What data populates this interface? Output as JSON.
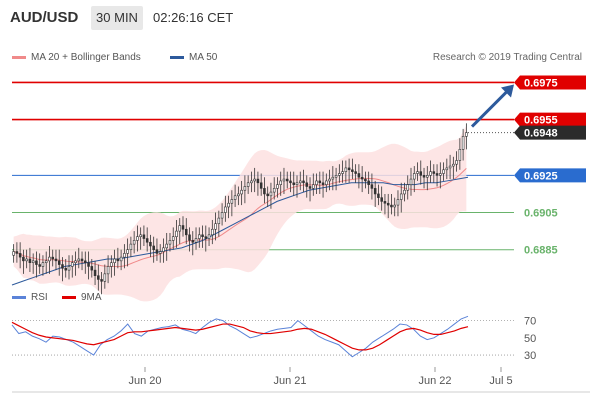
{
  "header": {
    "pair": "AUD/USD",
    "timeframe": "30 MIN",
    "time": "02:26:16 CET"
  },
  "legend": {
    "ma20_label": "MA 20 + Bollinger Bands",
    "ma50_label": "MA 50",
    "credit": "Research © 2019 Trading Central"
  },
  "rsi_legend": {
    "rsi_label": "RSI",
    "ma_label": "9MA"
  },
  "colors": {
    "resistance": "#e00000",
    "support": "#69b36b",
    "ma20": "#f08a8a",
    "ma50": "#2d5a9c",
    "bollinger_fill": "#fde0e0",
    "pivot": "#2a6ccf",
    "last_price": "#2b2b2b",
    "arrow": "#2d5a9c",
    "rsi": "#5b83d8",
    "rsi_ma": "#e00000"
  },
  "chart_data": [
    {
      "type": "candlestick",
      "title": "AUD/USD",
      "timeframe": "30 MIN",
      "x_tick_labels": [
        "Jun 20",
        "Jun 21",
        "Jun 22",
        "Jul 5"
      ],
      "ylim": [
        0.6866,
        0.6986
      ],
      "price_levels": [
        {
          "label": "0.6975",
          "value": 0.6975,
          "kind": "resistance"
        },
        {
          "label": "0.6955",
          "value": 0.6955,
          "kind": "resistance"
        },
        {
          "label": "0.6948",
          "value": 0.6948,
          "kind": "last"
        },
        {
          "label": "0.6925",
          "value": 0.6925,
          "kind": "pivot"
        },
        {
          "label": "0.6905",
          "value": 0.6905,
          "kind": "support"
        },
        {
          "label": "0.6885",
          "value": 0.6885,
          "kind": "support"
        }
      ],
      "close_series": [
        0.6884,
        0.6883,
        0.6881,
        0.6879,
        0.688,
        0.6878,
        0.6879,
        0.6877,
        0.6876,
        0.6878,
        0.6879,
        0.6881,
        0.688,
        0.6879,
        0.6877,
        0.6875,
        0.6874,
        0.6876,
        0.6878,
        0.6879,
        0.688,
        0.6879,
        0.6878,
        0.6876,
        0.6874,
        0.6871,
        0.6869,
        0.6868,
        0.6872,
        0.6876,
        0.6878,
        0.688,
        0.6879,
        0.6881,
        0.6883,
        0.6885,
        0.6888,
        0.689,
        0.6892,
        0.6893,
        0.6891,
        0.6889,
        0.6887,
        0.6885,
        0.6883,
        0.6884,
        0.6886,
        0.6888,
        0.689,
        0.6892,
        0.6895,
        0.6898,
        0.6896,
        0.6893,
        0.689,
        0.6889,
        0.6891,
        0.6893,
        0.6892,
        0.6891,
        0.6893,
        0.6896,
        0.6899,
        0.6902,
        0.6905,
        0.6908,
        0.691,
        0.6912,
        0.6914,
        0.6915,
        0.6917,
        0.6919,
        0.6921,
        0.6922,
        0.6923,
        0.6921,
        0.6918,
        0.6915,
        0.6914,
        0.6916,
        0.6918,
        0.692,
        0.6922,
        0.6923,
        0.6922,
        0.6921,
        0.692,
        0.6921,
        0.6922,
        0.6921,
        0.6919,
        0.6918,
        0.692,
        0.6922,
        0.6921,
        0.692,
        0.6922,
        0.6923,
        0.6924,
        0.6925,
        0.6926,
        0.6927,
        0.6929,
        0.6928,
        0.6927,
        0.6926,
        0.6924,
        0.6923,
        0.6922,
        0.692,
        0.6918,
        0.6915,
        0.6913,
        0.6911,
        0.691,
        0.6909,
        0.6908,
        0.6909,
        0.6912,
        0.6915,
        0.6917,
        0.692,
        0.6923,
        0.6926,
        0.6927,
        0.6925,
        0.6924,
        0.6925,
        0.6927,
        0.6926,
        0.6925,
        0.6926,
        0.6928,
        0.6929,
        0.693,
        0.6931,
        0.6933,
        0.6939,
        0.6946,
        0.6948
      ],
      "ma50_series": [
        0.6866,
        0.6868,
        0.687,
        0.6872,
        0.6874,
        0.6876,
        0.6877,
        0.6878,
        0.6879,
        0.688,
        0.688,
        0.6881,
        0.6882,
        0.6883,
        0.6884,
        0.6885,
        0.6886,
        0.6888,
        0.689,
        0.6893,
        0.6896,
        0.6899,
        0.6902,
        0.6905,
        0.6908,
        0.6911,
        0.6913,
        0.6915,
        0.6917,
        0.6918,
        0.6919,
        0.692,
        0.6921,
        0.6921,
        0.6921,
        0.6921,
        0.692,
        0.692,
        0.692,
        0.6921,
        0.6921,
        0.6922,
        0.6923,
        0.6924
      ],
      "x_range_candles": 140,
      "future_range_until": "Jul 5"
    },
    {
      "type": "line",
      "title": "",
      "series": [
        {
          "name": "RSI",
          "values": [
            65,
            55,
            57,
            52,
            49,
            45,
            52,
            51,
            48,
            45,
            40,
            35,
            30,
            42,
            48,
            52,
            58,
            66,
            55,
            52,
            58,
            60,
            62,
            63,
            65,
            60,
            58,
            55,
            62,
            68,
            72,
            70,
            64,
            60,
            55,
            50,
            52,
            55,
            58,
            60,
            61,
            62,
            70,
            64,
            58,
            52,
            48,
            45,
            42,
            35,
            28,
            33,
            38,
            45,
            50,
            55,
            60,
            66,
            65,
            60,
            52,
            48,
            50,
            55,
            60,
            66,
            72,
            75
          ]
        },
        {
          "name": "9MA",
          "values": [
            68,
            64,
            60,
            56,
            53,
            51,
            50,
            49,
            48,
            47,
            45,
            43,
            42,
            44,
            46,
            48,
            52,
            56,
            57,
            57,
            58,
            59,
            60,
            61,
            62,
            61,
            60,
            59,
            60,
            62,
            64,
            66,
            66,
            64,
            62,
            58,
            56,
            55,
            55,
            56,
            57,
            58,
            60,
            61,
            60,
            57,
            54,
            50,
            46,
            42,
            38,
            36,
            36,
            38,
            42,
            47,
            52,
            57,
            60,
            61,
            59,
            56,
            54,
            54,
            56,
            58,
            61,
            63
          ]
        }
      ],
      "ylim": [
        15,
        80
      ],
      "y_ticks": [
        70,
        50,
        30
      ],
      "reference_lines": [
        70,
        30
      ]
    }
  ]
}
